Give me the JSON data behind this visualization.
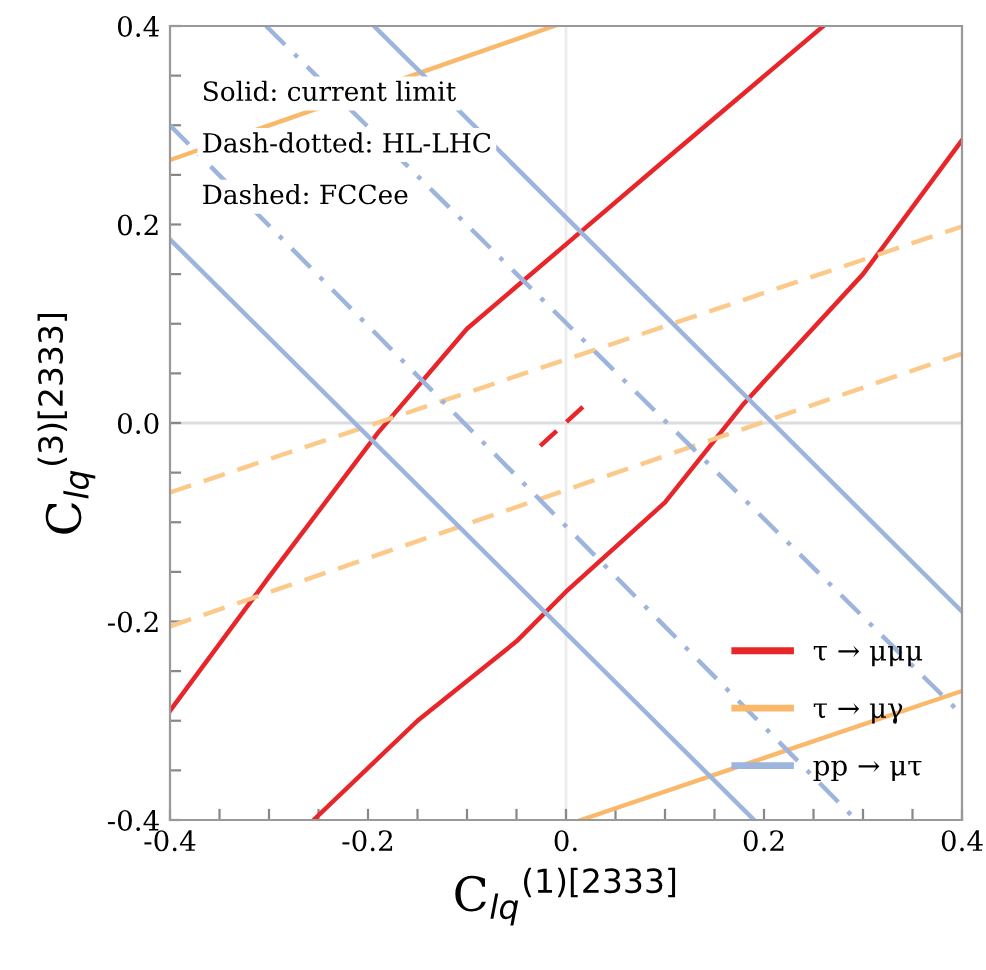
{
  "chart_data": {
    "type": "line",
    "xlabel": "C$_{lq}$$^{(1)[2333]}$",
    "ylabel": "C$_{lq}$$^{(3)[2333]}$",
    "annotations": [
      "Solid: current limit",
      "Dash-dotted: HL-LHC",
      "Dashed: FCCee"
    ],
    "xlim": [
      -0.4,
      0.4
    ],
    "ylim": [
      -0.4,
      0.4
    ],
    "xticks": [
      -0.4,
      {
        "value": -0.35,
        "label": null
      },
      {
        "value": -0.3,
        "label": null
      },
      {
        "value": -0.25,
        "label": null
      },
      -0.2,
      {
        "value": -0.15,
        "label": null
      },
      {
        "value": -0.1,
        "label": null
      },
      {
        "value": -0.05,
        "label": null
      },
      {
        "value": 0,
        "label": "0."
      },
      {
        "value": 0.05,
        "label": null
      },
      {
        "value": 0.1,
        "label": null
      },
      {
        "value": 0.15,
        "label": null
      },
      0.2,
      {
        "value": 0.25,
        "label": null
      },
      {
        "value": 0.3,
        "label": null
      },
      {
        "value": 0.35,
        "label": null
      },
      0.4
    ],
    "yticks": [
      -0.4,
      {
        "value": -0.35,
        "label": null
      },
      {
        "value": -0.3,
        "label": null
      },
      {
        "value": -0.25,
        "label": null
      },
      -0.2,
      {
        "value": -0.15,
        "label": null
      },
      {
        "value": -0.1,
        "label": null
      },
      {
        "value": -0.05,
        "label": null
      },
      {
        "value": 0,
        "label": "0.0"
      },
      {
        "value": 0.05,
        "label": null
      },
      {
        "value": 0.1,
        "label": null
      },
      {
        "value": 0.15,
        "label": null
      },
      0.2,
      {
        "value": 0.25,
        "label": null
      },
      {
        "value": 0.3,
        "label": null
      },
      {
        "value": 0.35,
        "label": null
      },
      0.4
    ],
    "ref_lines": [
      {
        "axis": "x",
        "value": 0,
        "color": "#ececec"
      },
      {
        "axis": "y",
        "value": 0,
        "color": "#dddddd"
      }
    ],
    "grid": false,
    "legend": "bottom right",
    "marker": "none",
    "series": [
      {
        "name": "τ → μμμ",
        "color": "#e8262a",
        "line_style": "solid",
        "x": [
          -0.4,
          -0.3,
          -0.19,
          -0.1,
          0,
          0.1,
          0.26
        ],
        "values": [
          -0.29,
          -0.155,
          -0.01,
          0.095,
          0.18,
          0.265,
          0.4
        ]
      },
      {
        "color": "#e8262a",
        "line_style": "solid",
        "x": [
          -0.255,
          -0.15,
          -0.05,
          0,
          0.1,
          0.18,
          0.3,
          0.4
        ],
        "values": [
          -0.4,
          -0.3,
          -0.22,
          -0.17,
          -0.08,
          0.02,
          0.15,
          0.285
        ]
      },
      {
        "color": "#e8262a",
        "line_style": "dashed",
        "x": [
          -0.026,
          0.02
        ],
        "values": [
          -0.023,
          0.019
        ]
      },
      {
        "name": "τ → μγ",
        "color": "#f9b86a",
        "line_style": "solid",
        "x": [
          -0.4,
          -0.012
        ],
        "values": [
          0.265,
          0.4
        ]
      },
      {
        "color": "#f9b86a",
        "line_style": "solid",
        "x": [
          0.015,
          0.4
        ],
        "values": [
          -0.4,
          -0.27
        ]
      },
      {
        "color": "#fbc98a",
        "line_style": "dashed",
        "x": [
          -0.4,
          0.4
        ],
        "values": [
          -0.07,
          0.198
        ]
      },
      {
        "color": "#fbc98a",
        "line_style": "dashed",
        "x": [
          -0.4,
          0.4
        ],
        "values": [
          -0.205,
          0.07
        ]
      },
      {
        "name": "pp → μτ",
        "color": "#9db5dd",
        "line_style": "solid",
        "x": [
          -0.4,
          0.19
        ],
        "values": [
          0.185,
          -0.4
        ]
      },
      {
        "color": "#9db5dd",
        "line_style": "solid",
        "x": [
          -0.194,
          0.4
        ],
        "values": [
          0.4,
          -0.19
        ]
      },
      {
        "color": "#9db5dd",
        "line_style": "dashdot",
        "x": [
          -0.4,
          0.293
        ],
        "values": [
          0.3,
          -0.4
        ]
      },
      {
        "color": "#9db5dd",
        "line_style": "dashdot",
        "x": [
          -0.303,
          0.4
        ],
        "values": [
          0.4,
          -0.294
        ]
      }
    ]
  }
}
